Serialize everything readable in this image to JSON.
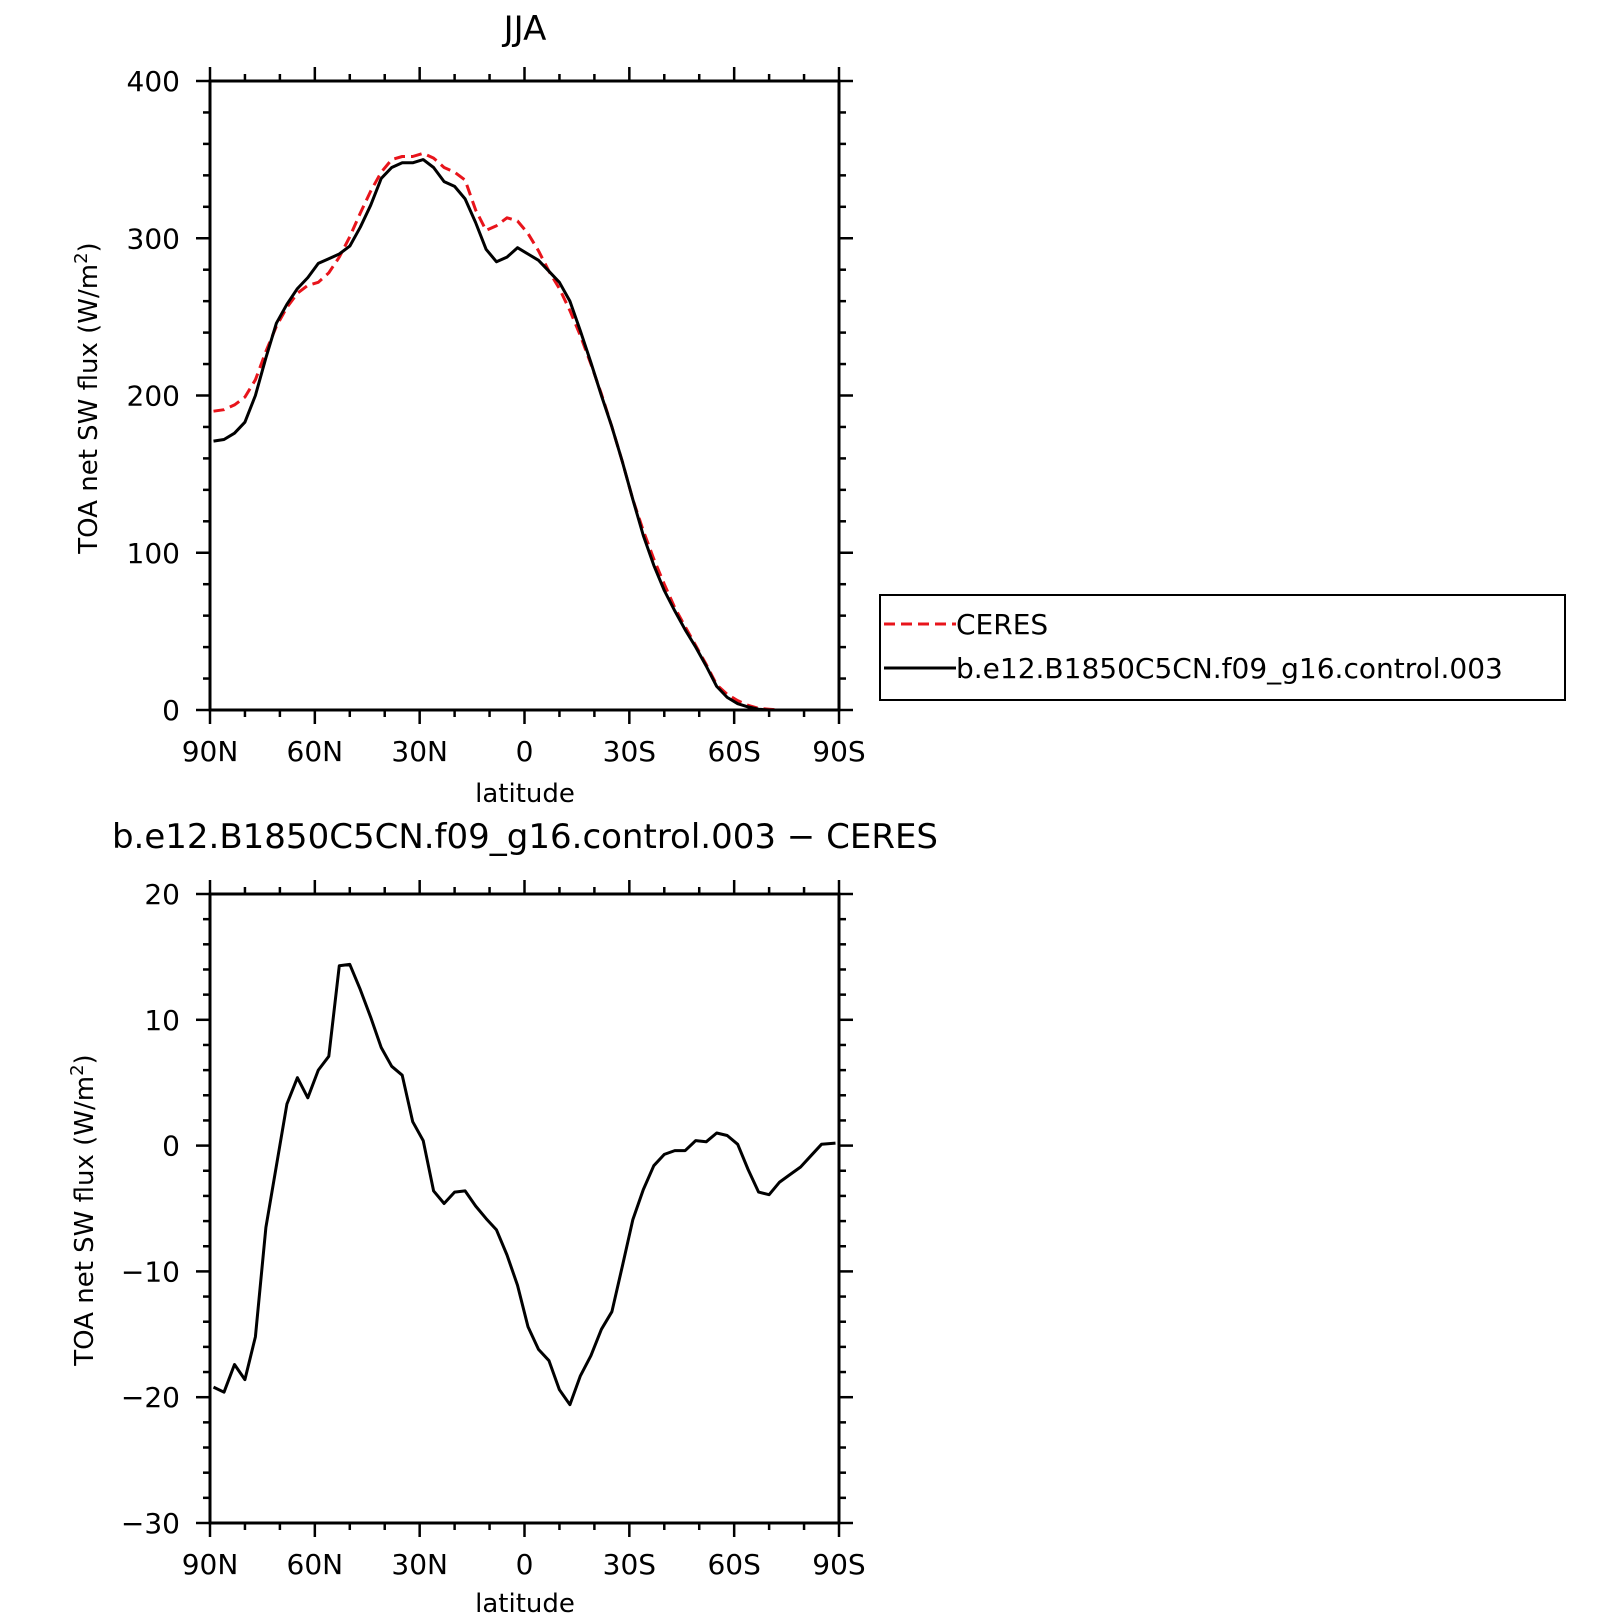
{
  "chart_data": [
    {
      "type": "line",
      "title": "JJA",
      "xlabel": "latitude",
      "ylabel": "TOA net SW flux (W/m",
      "ylabel_sup": "2",
      "ylabel_close": ")",
      "xlim": [
        90,
        -90
      ],
      "ylim": [
        0,
        400
      ],
      "xticks": [
        90,
        60,
        30,
        0,
        -30,
        -60,
        -90
      ],
      "xtick_labels": [
        "90N",
        "60N",
        "30N",
        "0",
        "30S",
        "60S",
        "90S"
      ],
      "yticks": [
        0,
        100,
        200,
        300,
        400
      ],
      "ytick_labels": [
        "0",
        "100",
        "200",
        "300",
        "400"
      ],
      "legend_position": "right",
      "series": [
        {
          "name": "CERES",
          "color": "#e8141b",
          "style": "dashed",
          "x": [
            89,
            86,
            83,
            80,
            77,
            74,
            71,
            68,
            65,
            62,
            59,
            56,
            53,
            50,
            47,
            44,
            41,
            38,
            35,
            32,
            29,
            26,
            23,
            20,
            17,
            14,
            11,
            8,
            5,
            2,
            -1,
            -4,
            -7,
            -10,
            -13,
            -16,
            -19,
            -22,
            -25,
            -28,
            -31,
            -34,
            -37,
            -40,
            -43,
            -46,
            -49,
            -52,
            -55,
            -58,
            -61,
            -64,
            -67,
            -70,
            -73,
            -76,
            -79,
            -82,
            -85,
            -89
          ],
          "y": [
            190,
            191,
            194,
            199,
            210,
            228,
            244,
            256,
            265,
            270,
            272,
            278,
            288,
            301,
            316,
            330,
            342,
            350,
            352,
            352,
            354,
            351,
            345,
            342,
            337,
            318,
            305,
            308,
            313,
            311,
            303,
            292,
            279,
            268,
            254,
            238,
            220,
            201,
            180,
            158,
            134,
            114,
            96,
            80,
            65,
            53,
            41,
            29,
            16,
            10,
            6,
            3,
            1,
            0.5,
            0,
            0,
            0,
            0,
            0,
            0
          ]
        },
        {
          "name": "b.e12.B1850C5CN.f09_g16.control.003",
          "color": "#000000",
          "style": "solid",
          "x": [
            89,
            86,
            83,
            80,
            77,
            74,
            71,
            68,
            65,
            62,
            59,
            56,
            53,
            50,
            47,
            44,
            41,
            38,
            35,
            32,
            29,
            26,
            23,
            20,
            17,
            14,
            11,
            8,
            5,
            2,
            -1,
            -4,
            -7,
            -10,
            -13,
            -16,
            -19,
            -22,
            -25,
            -28,
            -31,
            -34,
            -37,
            -40,
            -43,
            -46,
            -49,
            -52,
            -55,
            -58,
            -61,
            -64,
            -67,
            -70,
            -73,
            -76,
            -79,
            -82,
            -85,
            -89
          ],
          "y": [
            171,
            172,
            176,
            183,
            200,
            224,
            246,
            258,
            268,
            275,
            284,
            287,
            290,
            295,
            307,
            321,
            338,
            345,
            348,
            348,
            350,
            345,
            336,
            333,
            325,
            310,
            293,
            285,
            288,
            294,
            290,
            286,
            279,
            272,
            260,
            241,
            221,
            200,
            180,
            158,
            134,
            111,
            92,
            76,
            63,
            51,
            40,
            28,
            15,
            8,
            4,
            2,
            0.5,
            0,
            0,
            0,
            0,
            0,
            0,
            0
          ]
        }
      ]
    },
    {
      "type": "line",
      "title": "b.e12.B1850C5CN.f09_g16.control.003 − CERES",
      "xlabel": "latitude",
      "ylabel": "TOA net SW flux (W/m",
      "ylabel_sup": "2",
      "ylabel_close": ")",
      "xlim": [
        90,
        -90
      ],
      "ylim": [
        -30,
        20
      ],
      "xticks": [
        90,
        60,
        30,
        0,
        -30,
        -60,
        -90
      ],
      "xtick_labels": [
        "90N",
        "60N",
        "30N",
        "0",
        "30S",
        "60S",
        "90S"
      ],
      "yticks": [
        -30,
        -20,
        -10,
        0,
        10,
        20
      ],
      "ytick_labels": [
        "−30",
        "−20",
        "−10",
        "0",
        "10",
        "20"
      ],
      "series": [
        {
          "color": "#000000",
          "style": "solid",
          "x": [
            89,
            86,
            83,
            80,
            77,
            74,
            71,
            68,
            65,
            62,
            59,
            56,
            53,
            50,
            47,
            44,
            41,
            38,
            35,
            32,
            29,
            26,
            23,
            20,
            17,
            14,
            11,
            8,
            5,
            2,
            -1,
            -4,
            -7,
            -10,
            -13,
            -16,
            -19,
            -22,
            -25,
            -28,
            -31,
            -34,
            -37,
            -40,
            -43,
            -46,
            -49,
            -52,
            -55,
            -58,
            -61,
            -64,
            -67,
            -70,
            -73,
            -76,
            -79,
            -82,
            -85,
            -89
          ],
          "y": [
            -19.2,
            -19.6,
            -17.4,
            -18.6,
            -15.2,
            -6.5,
            -1.6,
            3.3,
            5.4,
            3.8,
            6.0,
            7.1,
            14.3,
            14.4,
            12.4,
            10.2,
            7.8,
            6.3,
            5.6,
            1.9,
            0.4,
            -3.6,
            -4.6,
            -3.7,
            -3.6,
            -4.8,
            -5.8,
            -6.7,
            -8.7,
            -11.1,
            -14.4,
            -16.2,
            -17.1,
            -19.4,
            -20.6,
            -18.3,
            -16.7,
            -14.6,
            -13.2,
            -9.6,
            -5.9,
            -3.5,
            -1.6,
            -0.7,
            -0.4,
            -0.4,
            0.4,
            0.3,
            1.0,
            0.8,
            0.1,
            -1.9,
            -3.7,
            -3.9,
            -2.9,
            -2.3,
            -1.7,
            -0.8,
            0.1,
            0.2
          ]
        }
      ]
    }
  ]
}
